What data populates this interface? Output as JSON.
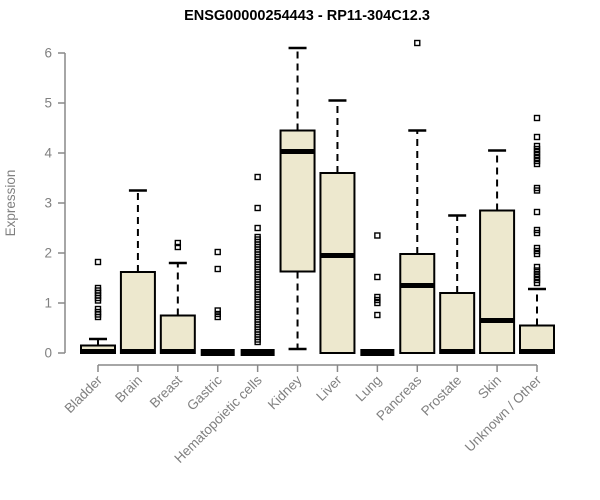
{
  "chart_data": {
    "type": "boxplot",
    "title": "ENSG00000254443 - RP11-304C12.3",
    "ylabel": "Expression",
    "xlabel": "",
    "ylim": [
      0,
      6
    ],
    "yticks": [
      0,
      1,
      2,
      3,
      4,
      5,
      6
    ],
    "grid": false,
    "legend": "none",
    "box_fill": "#EDE8CE",
    "box_border": "#000000",
    "axis_color": "#888888",
    "label_color": "#808080",
    "categories": [
      "Bladder",
      "Brain",
      "Breast",
      "Gastric",
      "Hematopoietic cells",
      "Kidney",
      "Liver",
      "Lung",
      "Pancreas",
      "Prostate",
      "Skin",
      "Unknown / Other"
    ],
    "series": [
      {
        "name": "Bladder",
        "low": 0,
        "q1": 0,
        "median": 0.03,
        "q3": 0.15,
        "high": 0.28,
        "outliers": [
          0.72,
          0.77,
          0.82,
          0.88,
          1.05,
          1.1,
          1.15,
          1.2,
          1.25,
          1.3,
          1.82
        ]
      },
      {
        "name": "Brain",
        "low": 0,
        "q1": 0,
        "median": 0.03,
        "q3": 1.62,
        "high": 3.25,
        "outliers": []
      },
      {
        "name": "Breast",
        "low": 0,
        "q1": 0,
        "median": 0.03,
        "q3": 0.75,
        "high": 1.8,
        "outliers": [
          2.12,
          2.2
        ]
      },
      {
        "name": "Gastric",
        "low": 0,
        "q1": 0,
        "median": 0.02,
        "q3": 0.03,
        "high": 0.03,
        "outliers": [
          0.72,
          0.78,
          0.85,
          1.68,
          2.02
        ]
      },
      {
        "name": "Hematopoietic cells",
        "low": 0,
        "q1": 0,
        "median": 0.02,
        "q3": 0.03,
        "high": 0.03,
        "outliers": [
          0.22,
          0.27,
          0.32,
          0.37,
          0.42,
          0.47,
          0.52,
          0.57,
          0.62,
          0.67,
          0.72,
          0.77,
          0.82,
          0.87,
          0.92,
          0.97,
          1.02,
          1.07,
          1.12,
          1.17,
          1.22,
          1.27,
          1.32,
          1.37,
          1.42,
          1.47,
          1.52,
          1.57,
          1.62,
          1.67,
          1.72,
          1.77,
          1.82,
          1.87,
          1.92,
          1.97,
          2.02,
          2.07,
          2.12,
          2.17,
          2.22,
          2.27,
          2.32,
          2.5,
          2.9,
          3.52
        ]
      },
      {
        "name": "Kidney",
        "low": 0.08,
        "q1": 1.63,
        "median": 4.03,
        "q3": 4.45,
        "high": 6.1,
        "outliers": []
      },
      {
        "name": "Liver",
        "low": 0,
        "q1": 0,
        "median": 1.95,
        "q3": 3.6,
        "high": 5.05,
        "outliers": []
      },
      {
        "name": "Lung",
        "low": 0,
        "q1": 0,
        "median": 0.02,
        "q3": 0.03,
        "high": 0.03,
        "outliers": [
          0.76,
          1.0,
          1.06,
          1.12,
          1.52,
          2.35
        ]
      },
      {
        "name": "Pancreas",
        "low": 0,
        "q1": 0,
        "median": 1.35,
        "q3": 1.98,
        "high": 4.45,
        "outliers": [
          6.2
        ]
      },
      {
        "name": "Prostate",
        "low": 0,
        "q1": 0,
        "median": 0.03,
        "q3": 1.2,
        "high": 2.75,
        "outliers": []
      },
      {
        "name": "Skin",
        "low": 0,
        "q1": 0,
        "median": 0.65,
        "q3": 2.85,
        "high": 4.05,
        "outliers": []
      },
      {
        "name": "Unknown / Other",
        "low": 0,
        "q1": 0,
        "median": 0.03,
        "q3": 0.55,
        "high": 1.28,
        "outliers": [
          1.4,
          1.46,
          1.52,
          1.58,
          1.65,
          1.72,
          1.98,
          2.04,
          2.1,
          2.4,
          2.46,
          2.82,
          3.25,
          3.3,
          3.78,
          3.84,
          3.9,
          3.96,
          4.02,
          4.08,
          4.14,
          4.32,
          4.7
        ]
      }
    ]
  }
}
